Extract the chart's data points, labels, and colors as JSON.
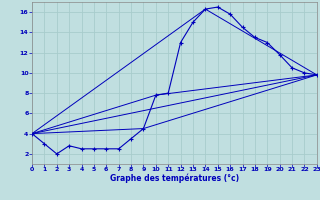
{
  "xlabel": "Graphe des températures (°c)",
  "xlim": [
    0,
    23
  ],
  "ylim": [
    1,
    17
  ],
  "yticks": [
    2,
    4,
    6,
    8,
    10,
    12,
    14,
    16
  ],
  "xticks": [
    0,
    1,
    2,
    3,
    4,
    5,
    6,
    7,
    8,
    9,
    10,
    11,
    12,
    13,
    14,
    15,
    16,
    17,
    18,
    19,
    20,
    21,
    22,
    23
  ],
  "background_color": "#c0dfe0",
  "grid_color": "#a8cccc",
  "line_color": "#0000bb",
  "main_line": [
    [
      0,
      4.0
    ],
    [
      1,
      3.0
    ],
    [
      2,
      2.0
    ],
    [
      3,
      2.8
    ],
    [
      4,
      2.5
    ],
    [
      5,
      2.5
    ],
    [
      6,
      2.5
    ],
    [
      7,
      2.5
    ],
    [
      8,
      3.5
    ],
    [
      9,
      4.5
    ],
    [
      10,
      7.8
    ],
    [
      11,
      8.0
    ],
    [
      12,
      13.0
    ],
    [
      13,
      15.0
    ],
    [
      14,
      16.3
    ],
    [
      15,
      16.5
    ],
    [
      16,
      15.8
    ],
    [
      17,
      14.5
    ],
    [
      18,
      13.5
    ],
    [
      19,
      13.0
    ],
    [
      20,
      11.8
    ],
    [
      21,
      10.5
    ],
    [
      22,
      10.0
    ],
    [
      23,
      9.8
    ]
  ],
  "extra_lines": [
    [
      [
        0,
        4.0
      ],
      [
        23,
        9.8
      ]
    ],
    [
      [
        0,
        4.0
      ],
      [
        9,
        4.5
      ],
      [
        23,
        9.8
      ]
    ],
    [
      [
        0,
        4.0
      ],
      [
        10,
        7.8
      ],
      [
        23,
        9.8
      ]
    ],
    [
      [
        0,
        4.0
      ],
      [
        14,
        16.3
      ],
      [
        23,
        9.8
      ]
    ]
  ]
}
